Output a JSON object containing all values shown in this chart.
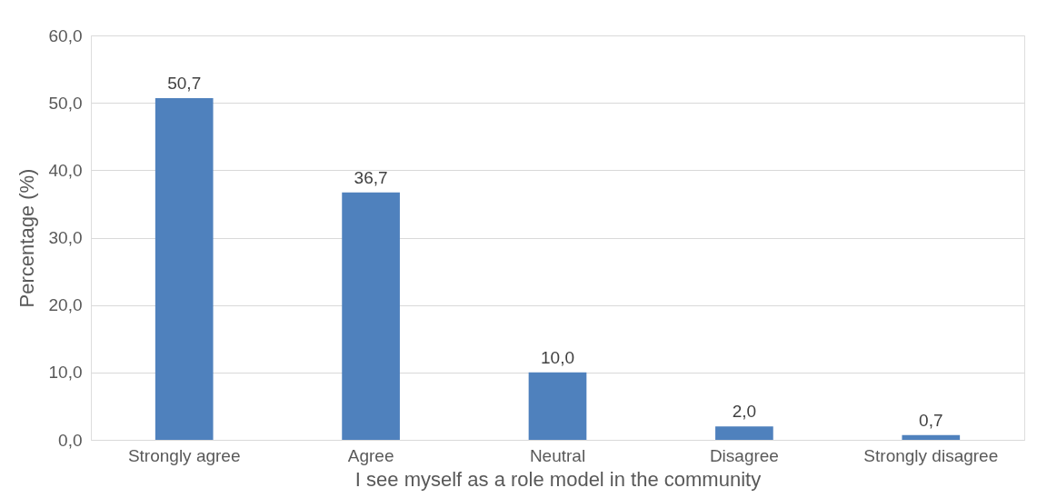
{
  "chart_data": {
    "type": "bar",
    "xlabel": "I see myself as a role model in the community",
    "ylabel": "Percentage (%)",
    "categories": [
      "Strongly agree",
      "Agree",
      "Neutral",
      "Disagree",
      "Strongly disagree"
    ],
    "values": [
      50.7,
      36.7,
      10.0,
      2.0,
      0.7
    ],
    "value_labels": [
      "50,7",
      "36,7",
      "10,0",
      "2,0",
      "0,7"
    ],
    "color": "#4f81bd",
    "ylim": [
      0,
      60
    ],
    "yticks": [
      {
        "value": 0,
        "label": "0,0"
      },
      {
        "value": 10,
        "label": "10,0"
      },
      {
        "value": 20,
        "label": "20,0"
      },
      {
        "value": 30,
        "label": "30,0"
      },
      {
        "value": 40,
        "label": "40,0"
      },
      {
        "value": 50,
        "label": "50,0"
      },
      {
        "value": 60,
        "label": "60,0"
      }
    ],
    "grid": "y"
  }
}
